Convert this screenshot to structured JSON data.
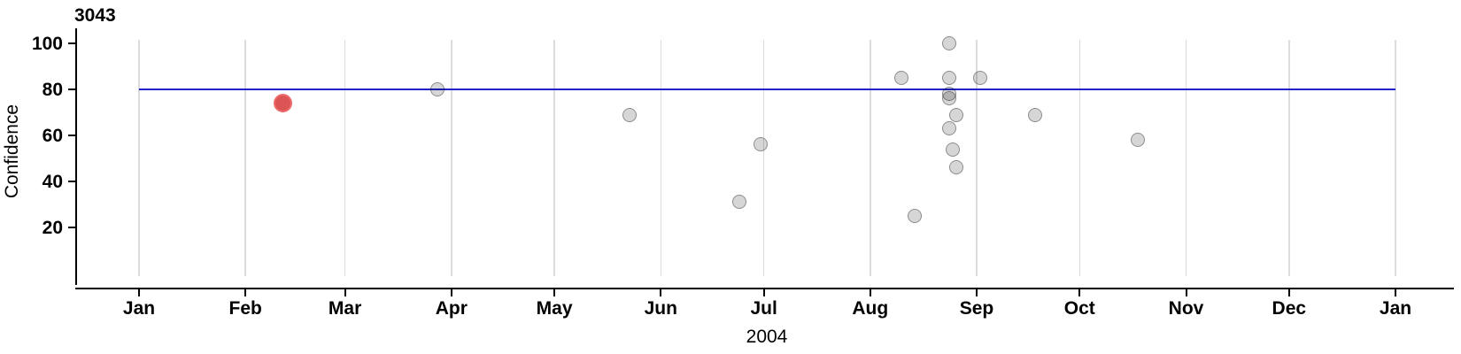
{
  "chart_data": {
    "type": "scatter",
    "title": "3043",
    "xlabel": "2004",
    "ylabel": "Confidence",
    "x_tick_labels": [
      "Jan",
      "Feb",
      "Mar",
      "Apr",
      "May",
      "Jun",
      "Jul",
      "Aug",
      "Sep",
      "Oct",
      "Nov",
      "Dec",
      "Jan"
    ],
    "y_ticks": [
      100,
      80,
      60,
      40,
      20
    ],
    "x_range": [
      "2004-01-01",
      "2005-01-01"
    ],
    "ylim": [
      -1,
      102
    ],
    "grid": "vertical-monthly",
    "legend": "none",
    "reference_line": {
      "y": 80,
      "color": "#2222cc"
    },
    "points": [
      {
        "date": "2004-02-12",
        "confidence": 74,
        "highlight": true
      },
      {
        "date": "2004-03-28",
        "confidence": 80,
        "highlight": false
      },
      {
        "date": "2004-05-23",
        "confidence": 69,
        "highlight": false
      },
      {
        "date": "2004-06-24",
        "confidence": 31,
        "highlight": false
      },
      {
        "date": "2004-06-30",
        "confidence": 56,
        "highlight": false
      },
      {
        "date": "2004-08-10",
        "confidence": 85,
        "highlight": false
      },
      {
        "date": "2004-08-14",
        "confidence": 25,
        "highlight": false
      },
      {
        "date": "2004-08-24",
        "confidence": 100,
        "highlight": false
      },
      {
        "date": "2004-08-24",
        "confidence": 85,
        "highlight": false
      },
      {
        "date": "2004-08-24",
        "confidence": 78,
        "highlight": false
      },
      {
        "date": "2004-08-24",
        "confidence": 76,
        "highlight": false
      },
      {
        "date": "2004-08-24",
        "confidence": 63,
        "highlight": false
      },
      {
        "date": "2004-08-25",
        "confidence": 54,
        "highlight": false
      },
      {
        "date": "2004-08-26",
        "confidence": 69,
        "highlight": false
      },
      {
        "date": "2004-08-26",
        "confidence": 46,
        "highlight": false
      },
      {
        "date": "2004-09-02",
        "confidence": 85,
        "highlight": false
      },
      {
        "date": "2004-09-18",
        "confidence": 69,
        "highlight": false
      },
      {
        "date": "2004-10-18",
        "confidence": 58,
        "highlight": false
      }
    ],
    "colors": {
      "grid": "#dcdcdc",
      "axis": "#000000",
      "reference_line": "#2222cc",
      "point_fill": "rgba(0,0,0,0.16)",
      "point_stroke": "rgba(0,0,0,0.35)",
      "highlight_fill": "rgba(214,62,62,0.88)",
      "highlight_stroke": "#ef6b6b"
    }
  }
}
